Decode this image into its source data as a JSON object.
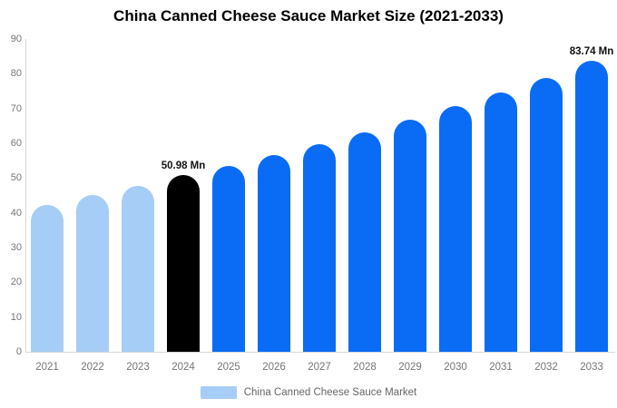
{
  "title": "China Canned Cheese Sauce Market Size (2021-2033)",
  "legend": {
    "label": "China Canned Cheese Sauce Market",
    "swatch_color": "#a6cdf5"
  },
  "colors": {
    "historical": "#a6cdf5",
    "base_year": "#000000",
    "forecast": "#0a6cf5",
    "axis_line": "#d9d9d9",
    "tick_text": "#757575",
    "data_label_text": "#111111",
    "title_text": "#000000",
    "background": "#ffffff"
  },
  "chart_data": {
    "type": "bar",
    "title": "China Canned Cheese Sauce Market Size (2021-2033)",
    "categories": [
      "2021",
      "2022",
      "2023",
      "2024",
      "2025",
      "2026",
      "2027",
      "2028",
      "2029",
      "2030",
      "2031",
      "2032",
      "2033"
    ],
    "values": [
      42.3,
      45.2,
      47.7,
      50.98,
      53.6,
      56.5,
      59.7,
      63.1,
      66.7,
      70.6,
      74.5,
      78.8,
      83.74
    ],
    "bar_roles": [
      "historical",
      "historical",
      "historical",
      "base_year",
      "forecast",
      "forecast",
      "forecast",
      "forecast",
      "forecast",
      "forecast",
      "forecast",
      "forecast",
      "forecast"
    ],
    "data_labels": [
      {
        "index": 3,
        "text": "50.98 Mn"
      },
      {
        "index": 12,
        "text": "83.74 Mn"
      }
    ],
    "unit": "Mn",
    "xlabel": "",
    "ylabel": "",
    "ylim": [
      0,
      90
    ],
    "yticks": [
      0,
      10,
      20,
      30,
      40,
      50,
      60,
      70,
      80,
      90
    ],
    "grid": false,
    "legend_position": "bottom",
    "legend_entries": [
      "China Canned Cheese Sauce Market"
    ]
  }
}
